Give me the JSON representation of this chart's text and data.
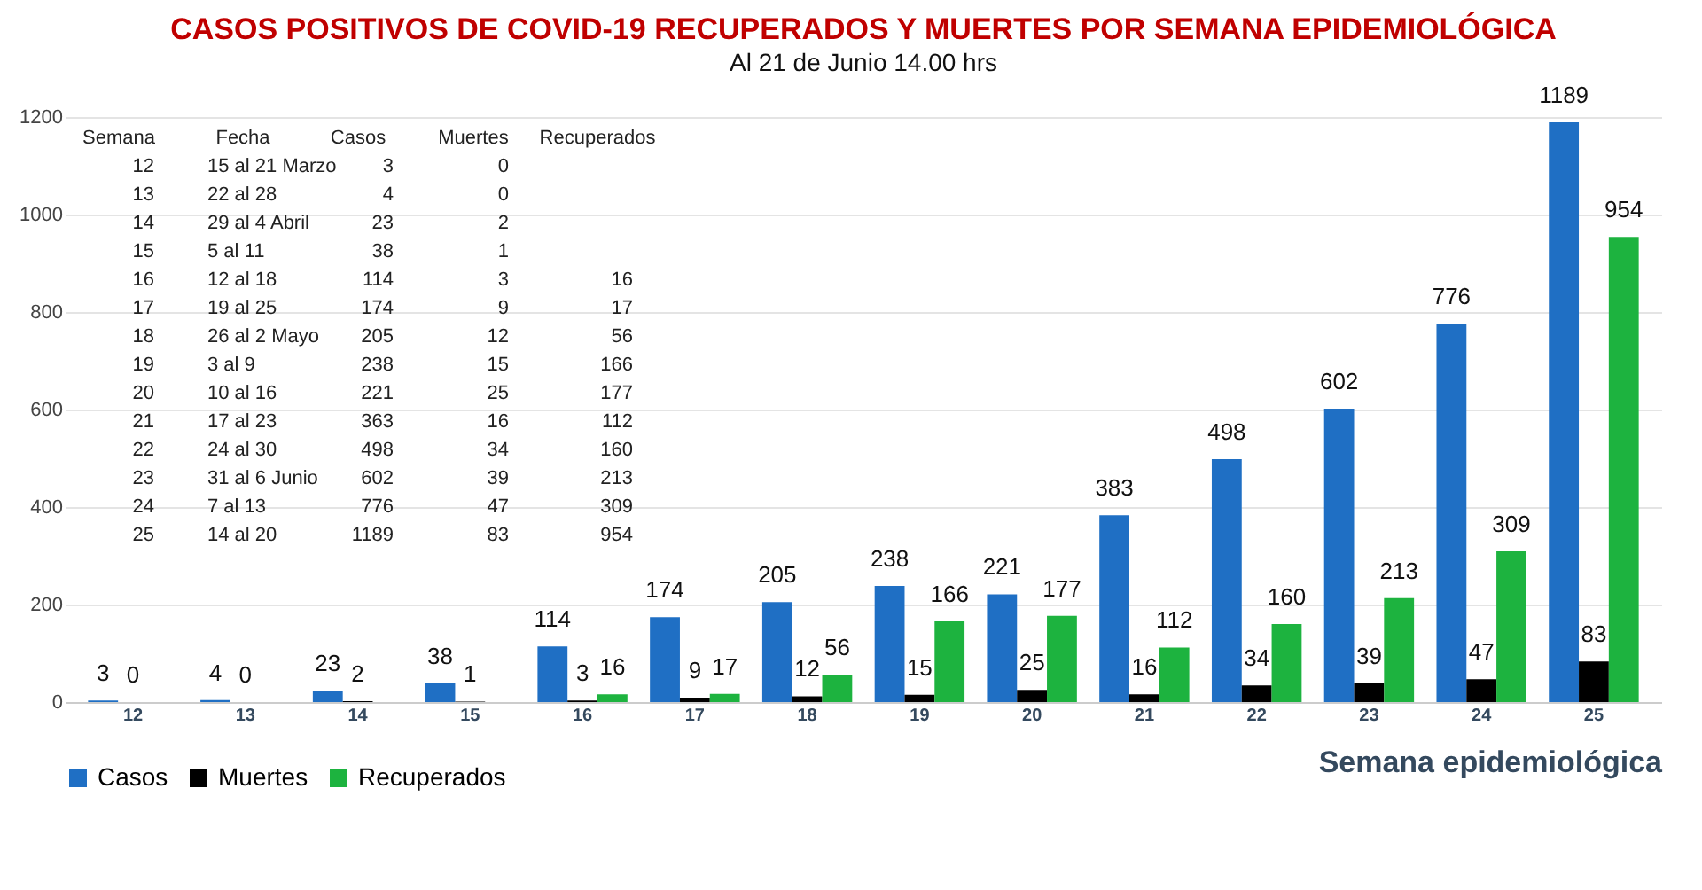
{
  "chart_data": {
    "type": "bar",
    "title": "CASOS POSITIVOS DE COVID-19 RECUPERADOS Y MUERTES POR SEMANA EPIDEMIOLÓGICA",
    "subtitle": "Al 21 de Junio 14.00 hrs",
    "xlabel": "Semana epidemiológica",
    "categories": [
      "12",
      "13",
      "14",
      "15",
      "16",
      "17",
      "18",
      "19",
      "20",
      "21",
      "22",
      "23",
      "24",
      "25"
    ],
    "series": [
      {
        "name": "Casos",
        "color": "#1f6fc4",
        "values": [
          3,
          4,
          23,
          38,
          114,
          174,
          205,
          238,
          221,
          383,
          498,
          602,
          776,
          1189
        ]
      },
      {
        "name": "Muertes",
        "color": "#000000",
        "values": [
          0,
          0,
          2,
          1,
          3,
          9,
          12,
          15,
          25,
          16,
          34,
          39,
          47,
          83
        ]
      },
      {
        "name": "Recuperados",
        "color": "#1db33f",
        "values": [
          null,
          null,
          null,
          null,
          16,
          17,
          56,
          166,
          177,
          112,
          160,
          213,
          309,
          954
        ]
      }
    ],
    "data_labels": true,
    "ylim": [
      0,
      1200
    ],
    "yticks": [
      0,
      200,
      400,
      600,
      800,
      1000,
      1200
    ],
    "grid": "y",
    "legend": "bottom",
    "annotations": [
      "Semana  Fecha  Casos  Muertes  Recuperados",
      "12  15 al 21 Marzo  3  0",
      "13  22 al 28  4  0",
      "14  29 al 4 Abril  23  2",
      "15  5 al 11  38  1",
      "16  12 al 18  114  3  16",
      "17  19 al 25  174  9  17",
      "18  26 al 2 Mayo  205  12  56",
      "19  3 al 9  238  15  166",
      "20  10 al 16  221  25  177",
      "21  17 al 23  363  16  112",
      "22  24 al 30  498  34  160",
      "23  31 al 6 Junio  602  39  213",
      "24  7 al 13  776  47  309",
      "25  14 al 20  1189  83  954"
    ]
  }
}
